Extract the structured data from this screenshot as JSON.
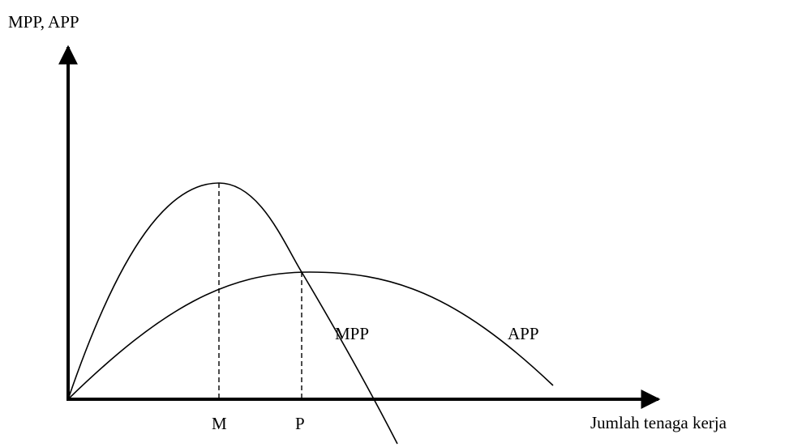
{
  "diagram": {
    "y_axis_label": "MPP, APP",
    "x_axis_label": "Jumlah tenaga kerja",
    "x_ticks": [
      "M",
      "P"
    ],
    "curves": [
      {
        "name": "MPP"
      },
      {
        "name": "APP"
      }
    ],
    "line_color": "#000000",
    "background": "#ffffff"
  }
}
